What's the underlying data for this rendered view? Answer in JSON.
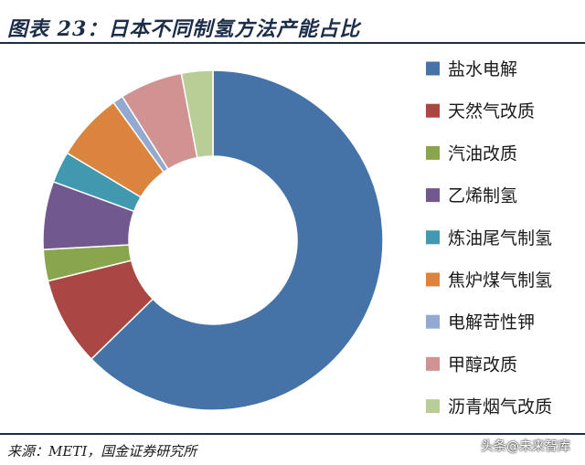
{
  "title": "图表 23：日本不同制氢方法产能占比",
  "source": "来源：METI，国金证券研究所",
  "watermark": "头条@未来智库",
  "chart_data": {
    "type": "pie",
    "donut": true,
    "legend_position": "right",
    "categories": [
      "盐水电解",
      "天然气改质",
      "汽油改质",
      "乙烯制氢",
      "炼油尾气制氢",
      "焦炉煤气制氢",
      "电解苛性钾",
      "甲醇改质",
      "沥青烟气改质"
    ],
    "values": [
      63,
      8.5,
      3,
      6.5,
      3,
      6.5,
      1,
      6,
      3
    ],
    "colors": [
      "#4572a7",
      "#aa4643",
      "#89a54e",
      "#71588f",
      "#4198af",
      "#db843d",
      "#93a9cf",
      "#d19392",
      "#b9cd96"
    ]
  }
}
